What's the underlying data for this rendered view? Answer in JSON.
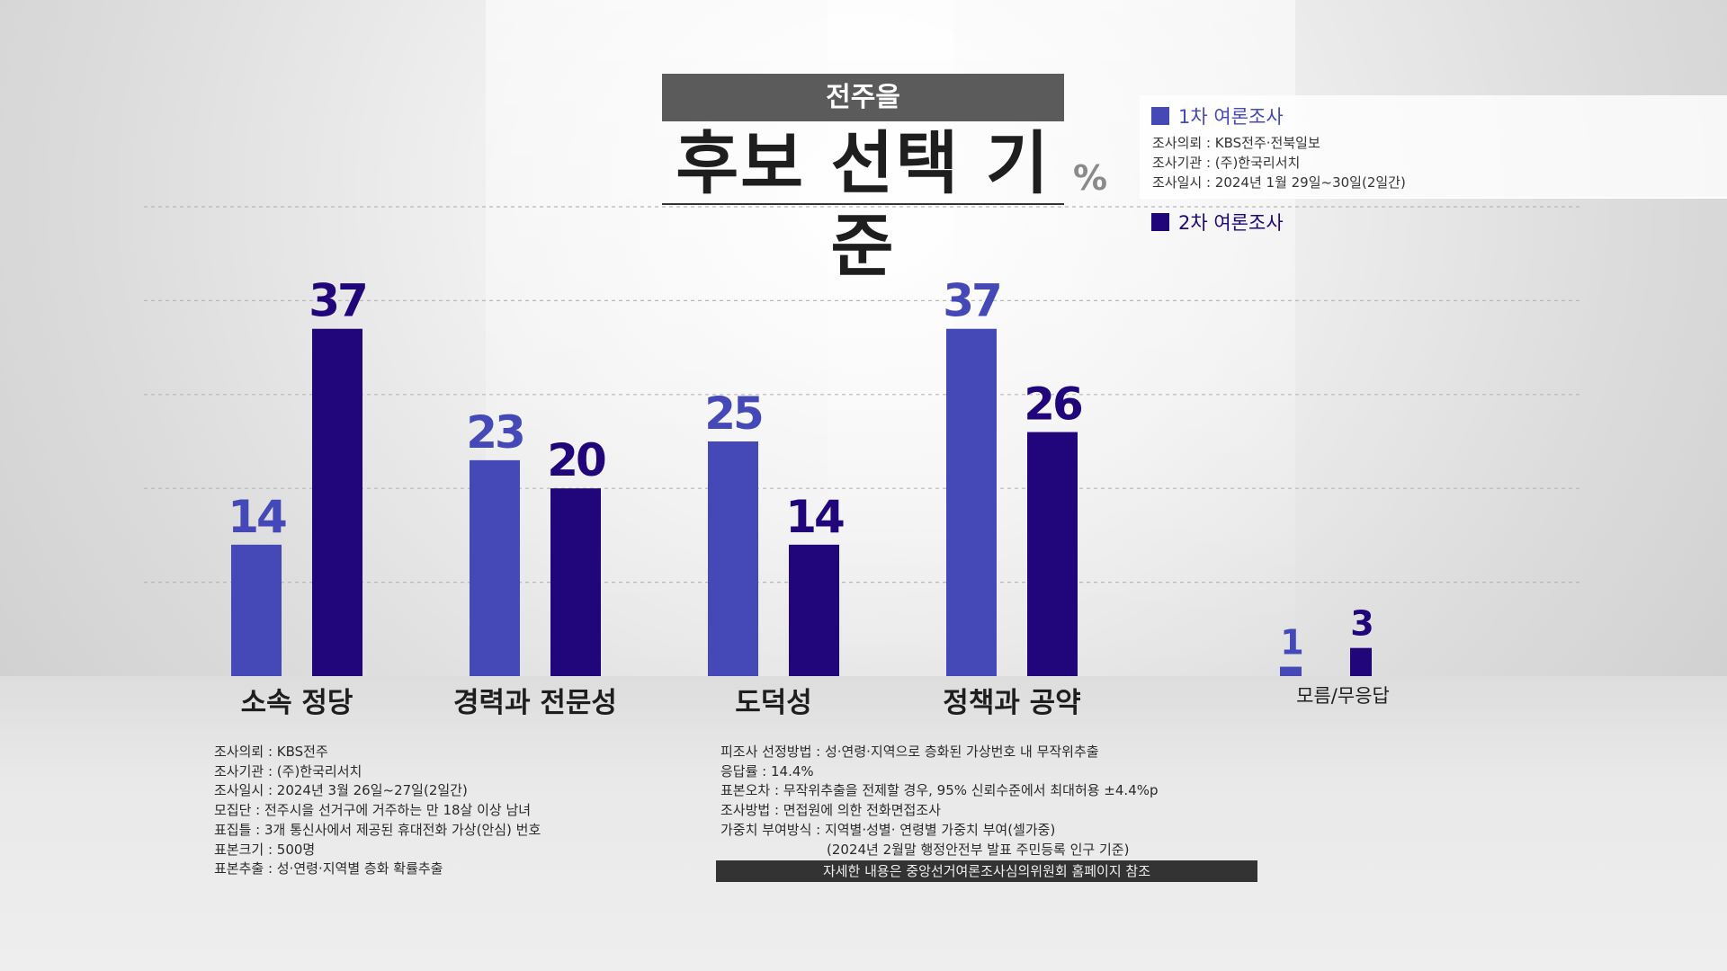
{
  "header": {
    "region": "전주을",
    "title": "후보 선택 기준",
    "unit": "%"
  },
  "legend": {
    "first": {
      "label": "1차 여론조사",
      "color": "#4549b8",
      "info": [
        "조사의뢰 : KBS전주·전북일보",
        "조사기관 : (주)한국리서치",
        "조사일시 : 2024년 1월 29일~30일(2일간)"
      ]
    },
    "second": {
      "label": "2차 여론조사",
      "color": "#20067a"
    }
  },
  "chart_data": {
    "type": "bar",
    "categories": [
      "소속 정당",
      "경력과 전문성",
      "도덕성",
      "정책과 공약",
      "모름/무응답"
    ],
    "series": [
      {
        "name": "1차 여론조사",
        "values": [
          14,
          23,
          25,
          37,
          1
        ]
      },
      {
        "name": "2차 여론조사",
        "values": [
          37,
          20,
          14,
          26,
          3
        ]
      }
    ],
    "ylim": [
      0,
      50
    ],
    "grid": true
  },
  "footnotes": {
    "left": [
      "조사의뢰 : KBS전주",
      "조사기관 : (주)한국리서치",
      "조사일시 : 2024년 3월 26일~27일(2일간)",
      "모집단 : 전주시을 선거구에 거주하는 만 18살 이상 남녀",
      "표집틀 : 3개 통신사에서 제공된 휴대전화 가상(안심) 번호",
      "표본크기 : 500명",
      "표본추출 : 성·연령·지역별 층화 확률추출"
    ],
    "right": [
      "피조사 선정방법 : 성·연령·지역으로 층화된 가상번호 내 무작위추출",
      "응답률 : 14.4%",
      "표본오차 : 무작위추출을 전제할 경우, 95% 신뢰수준에서 최대허용 ±4.4%p",
      "조사방법 : 면접원에 의한 전화면접조사",
      "가중치 부여방식 : 지역별·성별· 연령별 가중치 부여(셀가중)",
      "(2024년 2월말 행정안전부 발표 주민등록 인구 기준)"
    ],
    "source": "자세한 내용은 중앙선거여론조사심의위원회 홈페이지 참조"
  }
}
